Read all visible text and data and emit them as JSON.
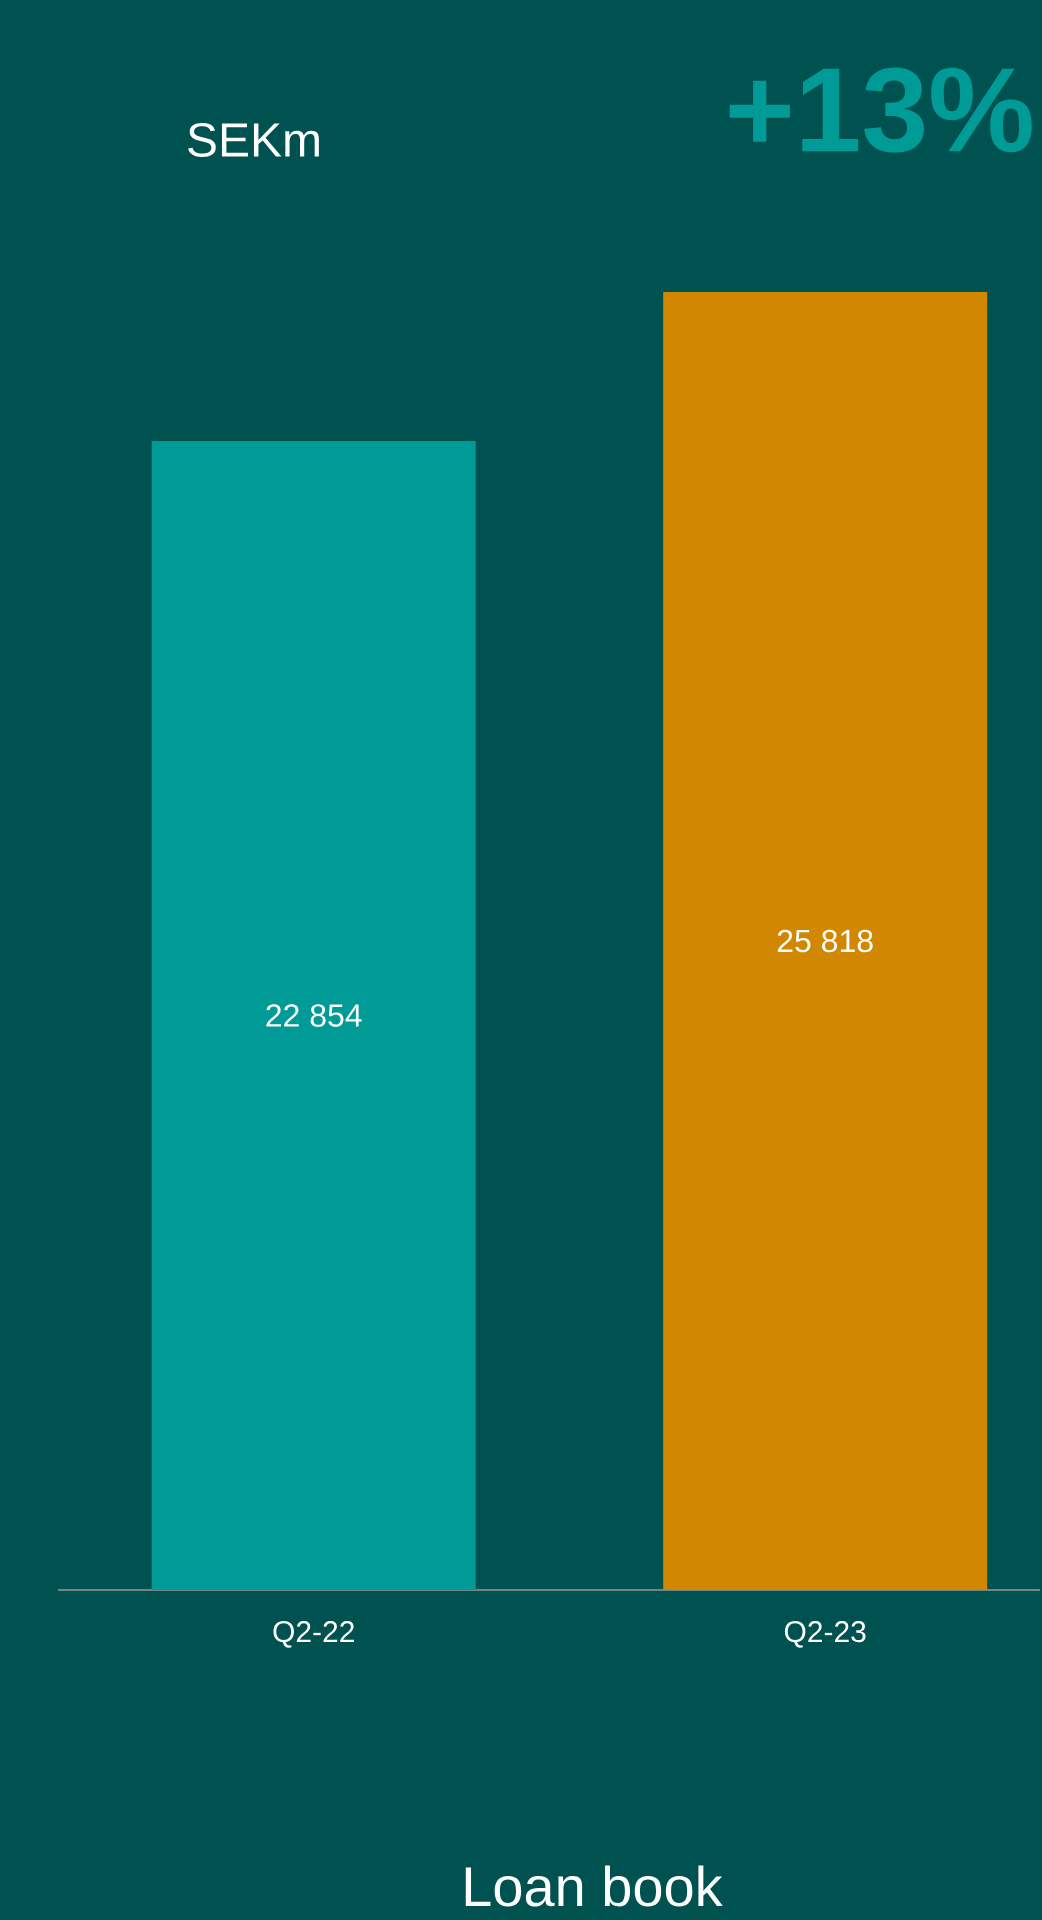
{
  "chart_data": {
    "type": "bar",
    "title": "Loan book",
    "ylabel": "SEKm",
    "annotations": [
      "+13%"
    ],
    "categories": [
      "Q2-22",
      "Q2-23"
    ],
    "values": [
      22854,
      25818
    ],
    "colors": [
      "#009b96",
      "#d18700"
    ],
    "value_labels": [
      "22 854",
      "25 818"
    ]
  }
}
